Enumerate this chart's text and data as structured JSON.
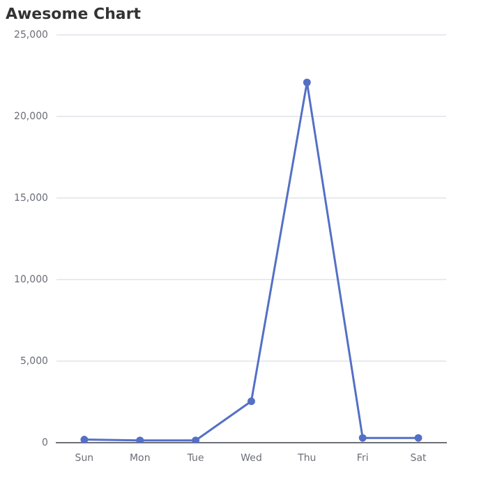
{
  "chart_data": {
    "type": "line",
    "title": "Awesome Chart",
    "categories": [
      "Sun",
      "Mon",
      "Tue",
      "Wed",
      "Thu",
      "Fri",
      "Sat"
    ],
    "series": [
      {
        "color": "#5470c6",
        "values": [
          200,
          150,
          150,
          2550,
          22100,
          300,
          300
        ]
      }
    ],
    "ylim": [
      0,
      25000
    ],
    "yticks": [
      {
        "value": 0,
        "label": "0"
      },
      {
        "value": 5000,
        "label": "5,000"
      },
      {
        "value": 10000,
        "label": "10,000"
      },
      {
        "value": 15000,
        "label": "15,000"
      },
      {
        "value": 20000,
        "label": "20,000"
      },
      {
        "value": 25000,
        "label": "25,000"
      }
    ],
    "grid": "y",
    "marker": "circle",
    "legend": false
  }
}
